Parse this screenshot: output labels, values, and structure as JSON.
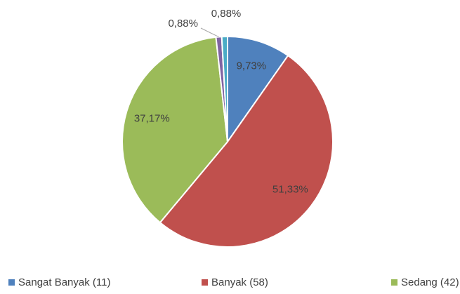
{
  "chart_data": {
    "type": "pie",
    "categories": [
      "Sangat Banyak (11)",
      "Banyak (58)",
      "Sedang (42)",
      null,
      null
    ],
    "values": [
      9.73,
      51.33,
      37.17,
      0.88,
      0.88
    ],
    "value_labels": [
      "9,73%",
      "51,33%",
      "37,17%",
      "0,88%",
      "0,88%"
    ],
    "colors": [
      "#4f81bd",
      "#c0504d",
      "#9bbb59",
      "#8064a2",
      "#4bacc6"
    ],
    "legend": "bottom"
  }
}
